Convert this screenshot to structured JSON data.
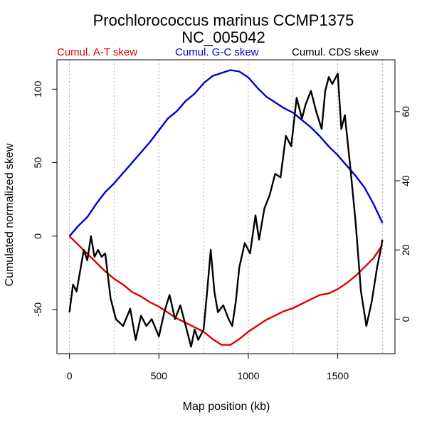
{
  "chart_data": {
    "type": "line",
    "title_line1": "Prochlorococcus marinus CCMP1375",
    "title_line2": "NC_005042",
    "xlabel": "Map position (kb)",
    "ylabel": "Cumulated normalized skew",
    "xlim": [
      -70,
      1820
    ],
    "ylim": [
      -80,
      120
    ],
    "ylim_right": [
      -10,
      75
    ],
    "x_ticks": [
      0,
      500,
      1000,
      1500
    ],
    "y_ticks_left": [
      -50,
      0,
      50,
      100
    ],
    "y_ticks_right": [
      0,
      20,
      40,
      60
    ],
    "vgrid": [
      0,
      250,
      500,
      750,
      1000,
      1250,
      1500,
      1750
    ],
    "grid": "vertical dotted",
    "legend": [
      {
        "label": "Cumul. A-T skew",
        "color": "#e00000"
      },
      {
        "label": "Cumul. G-C skew",
        "color": "#0000d0"
      },
      {
        "label": "Cumul. CDS skew",
        "color": "#000000"
      }
    ],
    "series": [
      {
        "name": "Cumul. A-T skew",
        "axis": "left",
        "color": "#e00000",
        "x": [
          0,
          50,
          100,
          150,
          200,
          250,
          300,
          350,
          400,
          450,
          500,
          550,
          600,
          650,
          700,
          750,
          800,
          850,
          900,
          950,
          1000,
          1050,
          1100,
          1150,
          1200,
          1250,
          1300,
          1350,
          1400,
          1450,
          1500,
          1550,
          1600,
          1650,
          1700,
          1750
        ],
        "values": [
          0,
          -6,
          -12,
          -18,
          -24,
          -29,
          -33,
          -38,
          -41,
          -45,
          -48,
          -52,
          -56,
          -59,
          -62,
          -65,
          -70,
          -74,
          -74,
          -70,
          -65,
          -61,
          -57,
          -54,
          -51,
          -49,
          -46,
          -43,
          -40,
          -39,
          -36,
          -32,
          -27,
          -21,
          -15,
          -6
        ]
      },
      {
        "name": "Cumul. G-C skew",
        "axis": "left",
        "color": "#0000d0",
        "x": [
          0,
          50,
          100,
          150,
          200,
          250,
          300,
          350,
          400,
          450,
          500,
          550,
          600,
          650,
          700,
          750,
          800,
          850,
          900,
          950,
          1000,
          1050,
          1100,
          1150,
          1200,
          1250,
          1300,
          1350,
          1400,
          1450,
          1500,
          1550,
          1600,
          1650,
          1700,
          1750
        ],
        "values": [
          0,
          7,
          13,
          22,
          30,
          36,
          43,
          50,
          57,
          64,
          72,
          80,
          85,
          92,
          97,
          104,
          109,
          111,
          113,
          112,
          108,
          101,
          95,
          91,
          87,
          84,
          79,
          74,
          68,
          61,
          55,
          48,
          41,
          33,
          22,
          9
        ]
      },
      {
        "name": "Cumul. CDS skew",
        "axis": "right",
        "color": "#000000",
        "x": [
          0,
          20,
          40,
          60,
          80,
          100,
          120,
          140,
          160,
          180,
          200,
          230,
          260,
          300,
          340,
          370,
          400,
          430,
          460,
          500,
          530,
          560,
          590,
          620,
          650,
          680,
          700,
          720,
          750,
          770,
          790,
          810,
          830,
          860,
          890,
          910,
          930,
          950,
          980,
          1010,
          1040,
          1060,
          1090,
          1120,
          1150,
          1180,
          1210,
          1240,
          1270,
          1300,
          1320,
          1350,
          1380,
          1410,
          1430,
          1450,
          1470,
          1500,
          1520,
          1540,
          1570,
          1600,
          1630,
          1660,
          1690,
          1720,
          1740,
          1750
        ],
        "values": [
          2,
          10,
          8,
          14,
          20,
          17,
          24,
          18,
          20,
          18,
          19,
          6,
          0,
          -2,
          3,
          -6,
          1,
          -2,
          0,
          -5,
          2,
          7,
          0,
          4,
          -2,
          -8,
          -3,
          -6,
          -3,
          8,
          20,
          8,
          2,
          4,
          0,
          -2,
          5,
          15,
          22,
          19,
          30,
          23,
          32,
          36,
          42,
          41,
          53,
          50,
          64,
          58,
          62,
          66,
          60,
          55,
          66,
          70,
          68,
          71,
          55,
          59,
          44,
          28,
          8,
          -2,
          5,
          15,
          20,
          23
        ]
      }
    ]
  }
}
